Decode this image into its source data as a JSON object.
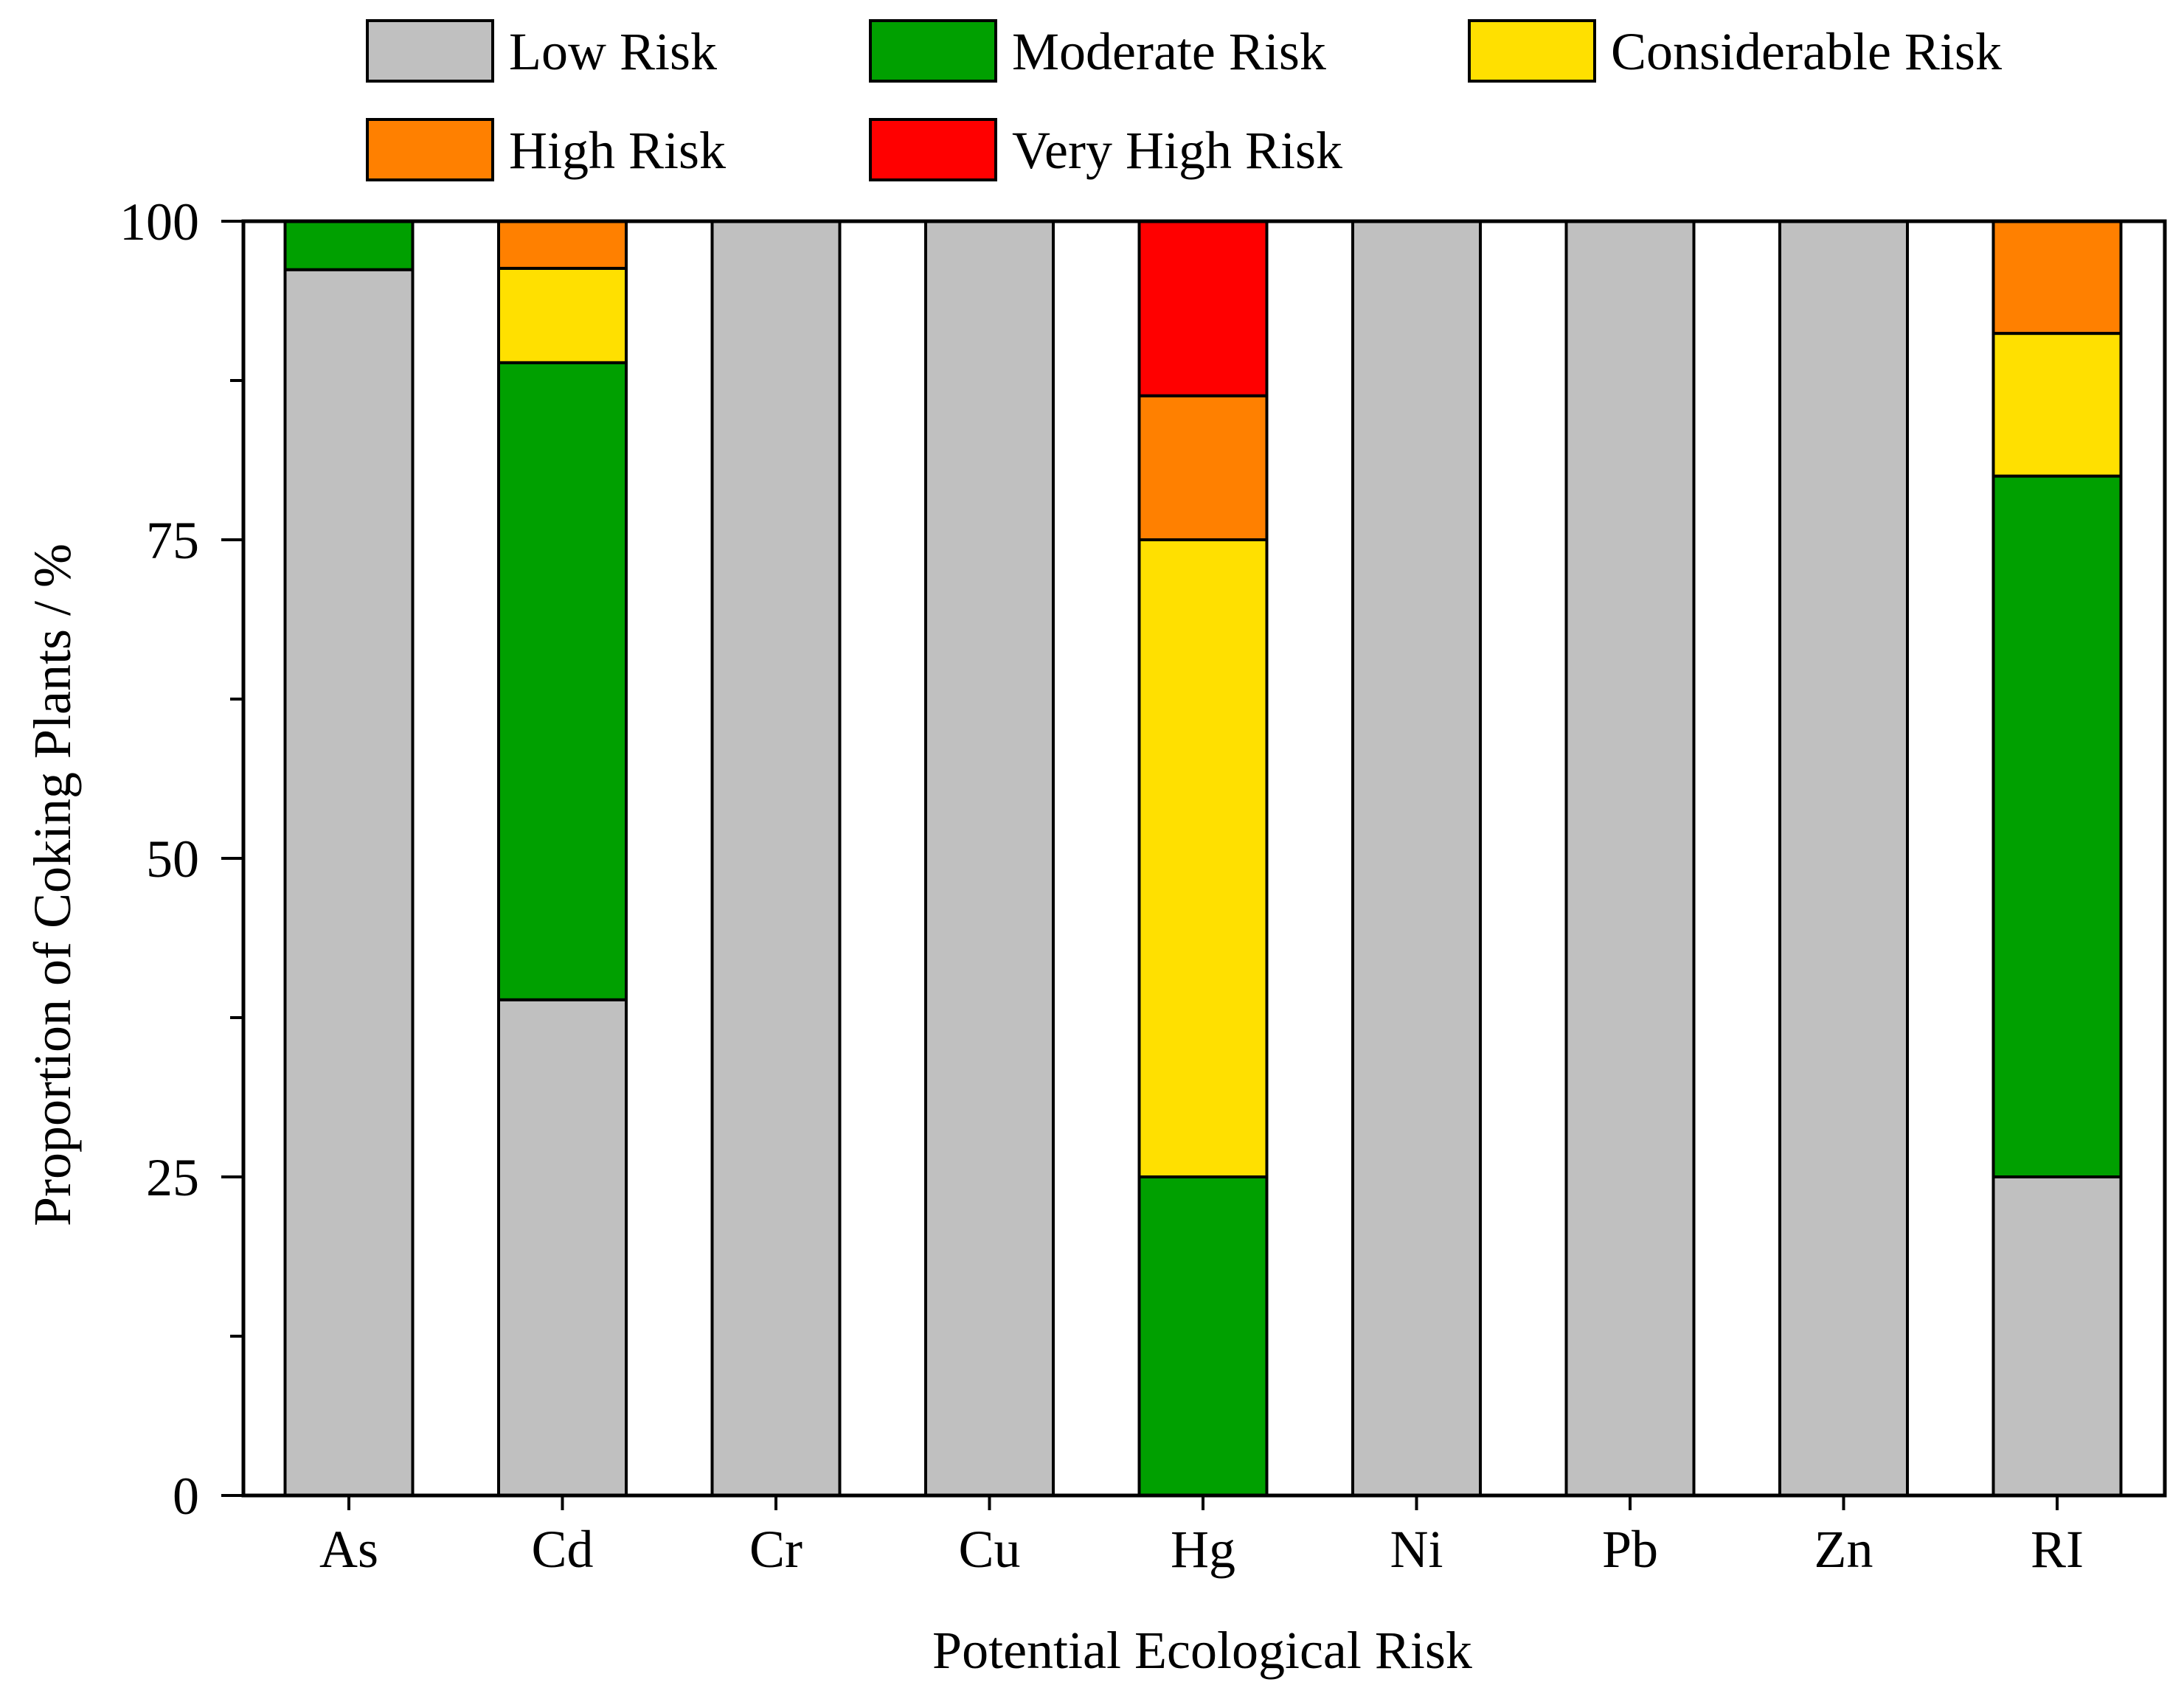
{
  "chart_data": {
    "type": "bar",
    "stacked": true,
    "title": "",
    "xlabel": "Potential Ecological Risk",
    "ylabel": "Proportion of Coking Plants / %",
    "ylim": [
      0,
      100
    ],
    "yticks": [
      "0",
      "25",
      "50",
      "75",
      "100"
    ],
    "categories": [
      "As",
      "Cd",
      "Cr",
      "Cu",
      "Hg",
      "Ni",
      "Pb",
      "Zn",
      "RI"
    ],
    "series": [
      {
        "name": "Low Risk",
        "color": "#c0c0c0",
        "values": [
          96.2,
          38.9,
          100,
          100,
          0,
          100,
          100,
          100,
          25.0
        ]
      },
      {
        "name": "Moderate Risk",
        "color": "#00a000",
        "values": [
          3.8,
          50.0,
          0,
          0,
          25.0,
          0,
          0,
          0,
          55.0
        ]
      },
      {
        "name": "Considerable Risk",
        "color": "#ffe000",
        "values": [
          0,
          7.4,
          0,
          0,
          50.0,
          0,
          0,
          0,
          11.2
        ]
      },
      {
        "name": "High Risk",
        "color": "#ff8000",
        "values": [
          0,
          3.7,
          0,
          0,
          11.3,
          0,
          0,
          0,
          8.8
        ]
      },
      {
        "name": "Very High Risk",
        "color": "#ff0000",
        "values": [
          0,
          0,
          0,
          0,
          13.7,
          0,
          0,
          0,
          0
        ]
      }
    ],
    "legend_position": "top",
    "grid": false
  }
}
